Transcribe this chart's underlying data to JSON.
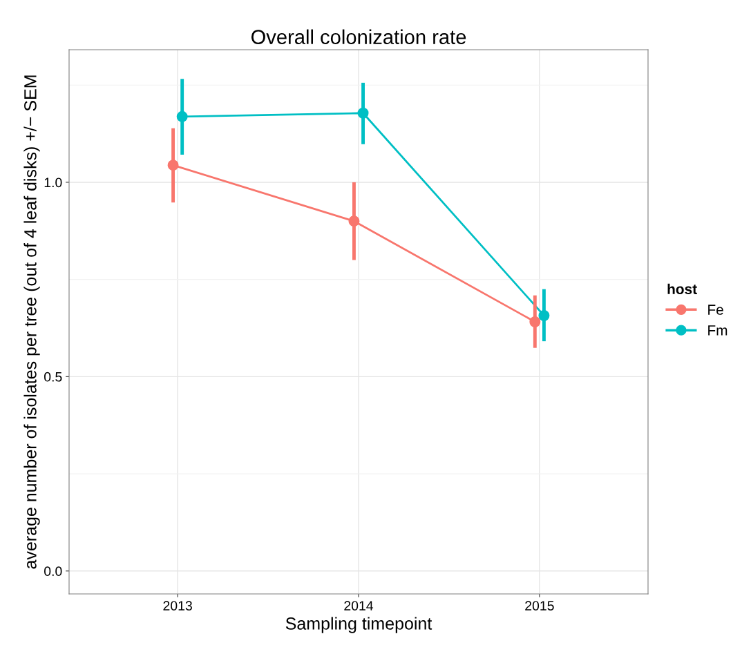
{
  "chart_data": {
    "type": "line",
    "title": "Overall colonization rate",
    "xlabel": "Sampling timepoint",
    "ylabel": "average number of isolates per tree (out of 4 leaf disks) +/− SEM",
    "legend_title": "host",
    "categories": [
      "2013",
      "2014",
      "2015"
    ],
    "series": [
      {
        "name": "Fe",
        "color": "#f8766d",
        "values": [
          1.044,
          0.9,
          0.641
        ],
        "errors": [
          [
            0.948,
            1.139
          ],
          [
            0.8,
            1.0
          ],
          [
            0.574,
            0.709
          ]
        ]
      },
      {
        "name": "Fm",
        "color": "#00bfc4",
        "values": [
          1.169,
          1.178,
          0.657
        ],
        "errors": [
          [
            1.071,
            1.266
          ],
          [
            1.098,
            1.256
          ],
          [
            0.591,
            0.725
          ]
        ]
      }
    ],
    "ylim": [
      -0.059,
      1.341
    ],
    "yticks": [
      {
        "value": 0,
        "label": "0.0"
      },
      {
        "value": 0.25,
        "label": null
      },
      0.5,
      {
        "value": 0.75,
        "label": null
      },
      {
        "value": 1,
        "label": "1.0"
      },
      {
        "value": 1.25,
        "label": null
      }
    ],
    "grid": true,
    "legend": "right",
    "marker": "circle",
    "line_style": "solid"
  }
}
